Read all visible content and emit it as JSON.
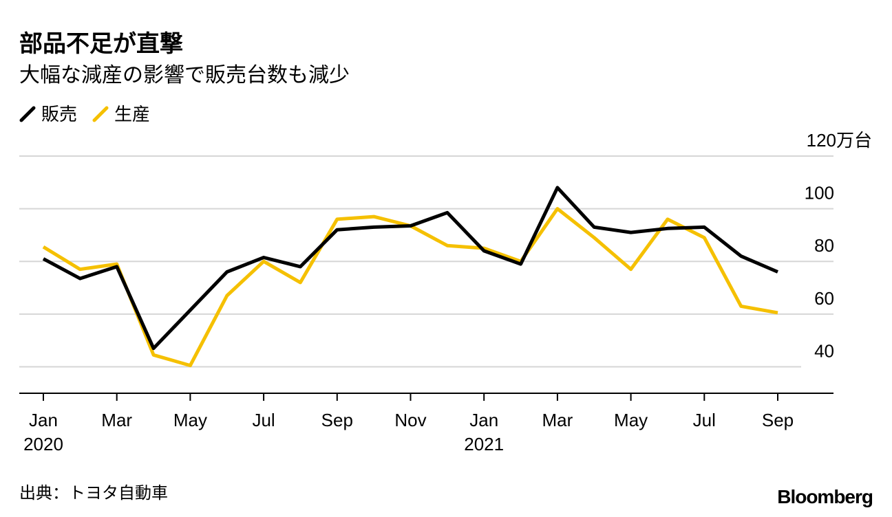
{
  "title": "部品不足が直撃",
  "subtitle": "大幅な減産の影響で販売台数も減少",
  "legend": [
    {
      "label": "販売",
      "color": "#000000"
    },
    {
      "label": "生産",
      "color": "#f5c000"
    }
  ],
  "source": "出典：トヨタ自動車",
  "brand": "Bloomberg",
  "chart_data": {
    "type": "line",
    "x": [
      "2020-01",
      "2020-02",
      "2020-03",
      "2020-04",
      "2020-05",
      "2020-06",
      "2020-07",
      "2020-08",
      "2020-09",
      "2020-10",
      "2020-11",
      "2020-12",
      "2021-01",
      "2021-02",
      "2021-03",
      "2021-04",
      "2021-05",
      "2021-06",
      "2021-07",
      "2021-08",
      "2021-09"
    ],
    "series": [
      {
        "name": "販売",
        "color": "#000000",
        "values": [
          81,
          73.5,
          78,
          47,
          61.5,
          76,
          81.5,
          78,
          92,
          93,
          93.5,
          98.5,
          84,
          79,
          108,
          93,
          91,
          92.5,
          93,
          82,
          76
        ]
      },
      {
        "name": "生産",
        "color": "#f5c000",
        "values": [
          85.5,
          77,
          79,
          44.5,
          40.5,
          67,
          80,
          72,
          96,
          97,
          93.5,
          86,
          85,
          80,
          100,
          89,
          77,
          96,
          89,
          63,
          60.5
        ]
      }
    ],
    "y_ticks": [
      40,
      60,
      80,
      100,
      120
    ],
    "y_unit_label": "120万台",
    "ylim": [
      30,
      120
    ],
    "x_tick_labels": [
      {
        "index": 0,
        "label": "Jan",
        "year": "2020"
      },
      {
        "index": 2,
        "label": "Mar"
      },
      {
        "index": 4,
        "label": "May"
      },
      {
        "index": 6,
        "label": "Jul"
      },
      {
        "index": 8,
        "label": "Sep"
      },
      {
        "index": 10,
        "label": "Nov"
      },
      {
        "index": 12,
        "label": "Jan",
        "year": "2021"
      },
      {
        "index": 14,
        "label": "Mar"
      },
      {
        "index": 16,
        "label": "May"
      },
      {
        "index": 18,
        "label": "Jul"
      },
      {
        "index": 20,
        "label": "Sep"
      }
    ],
    "grid": true
  }
}
